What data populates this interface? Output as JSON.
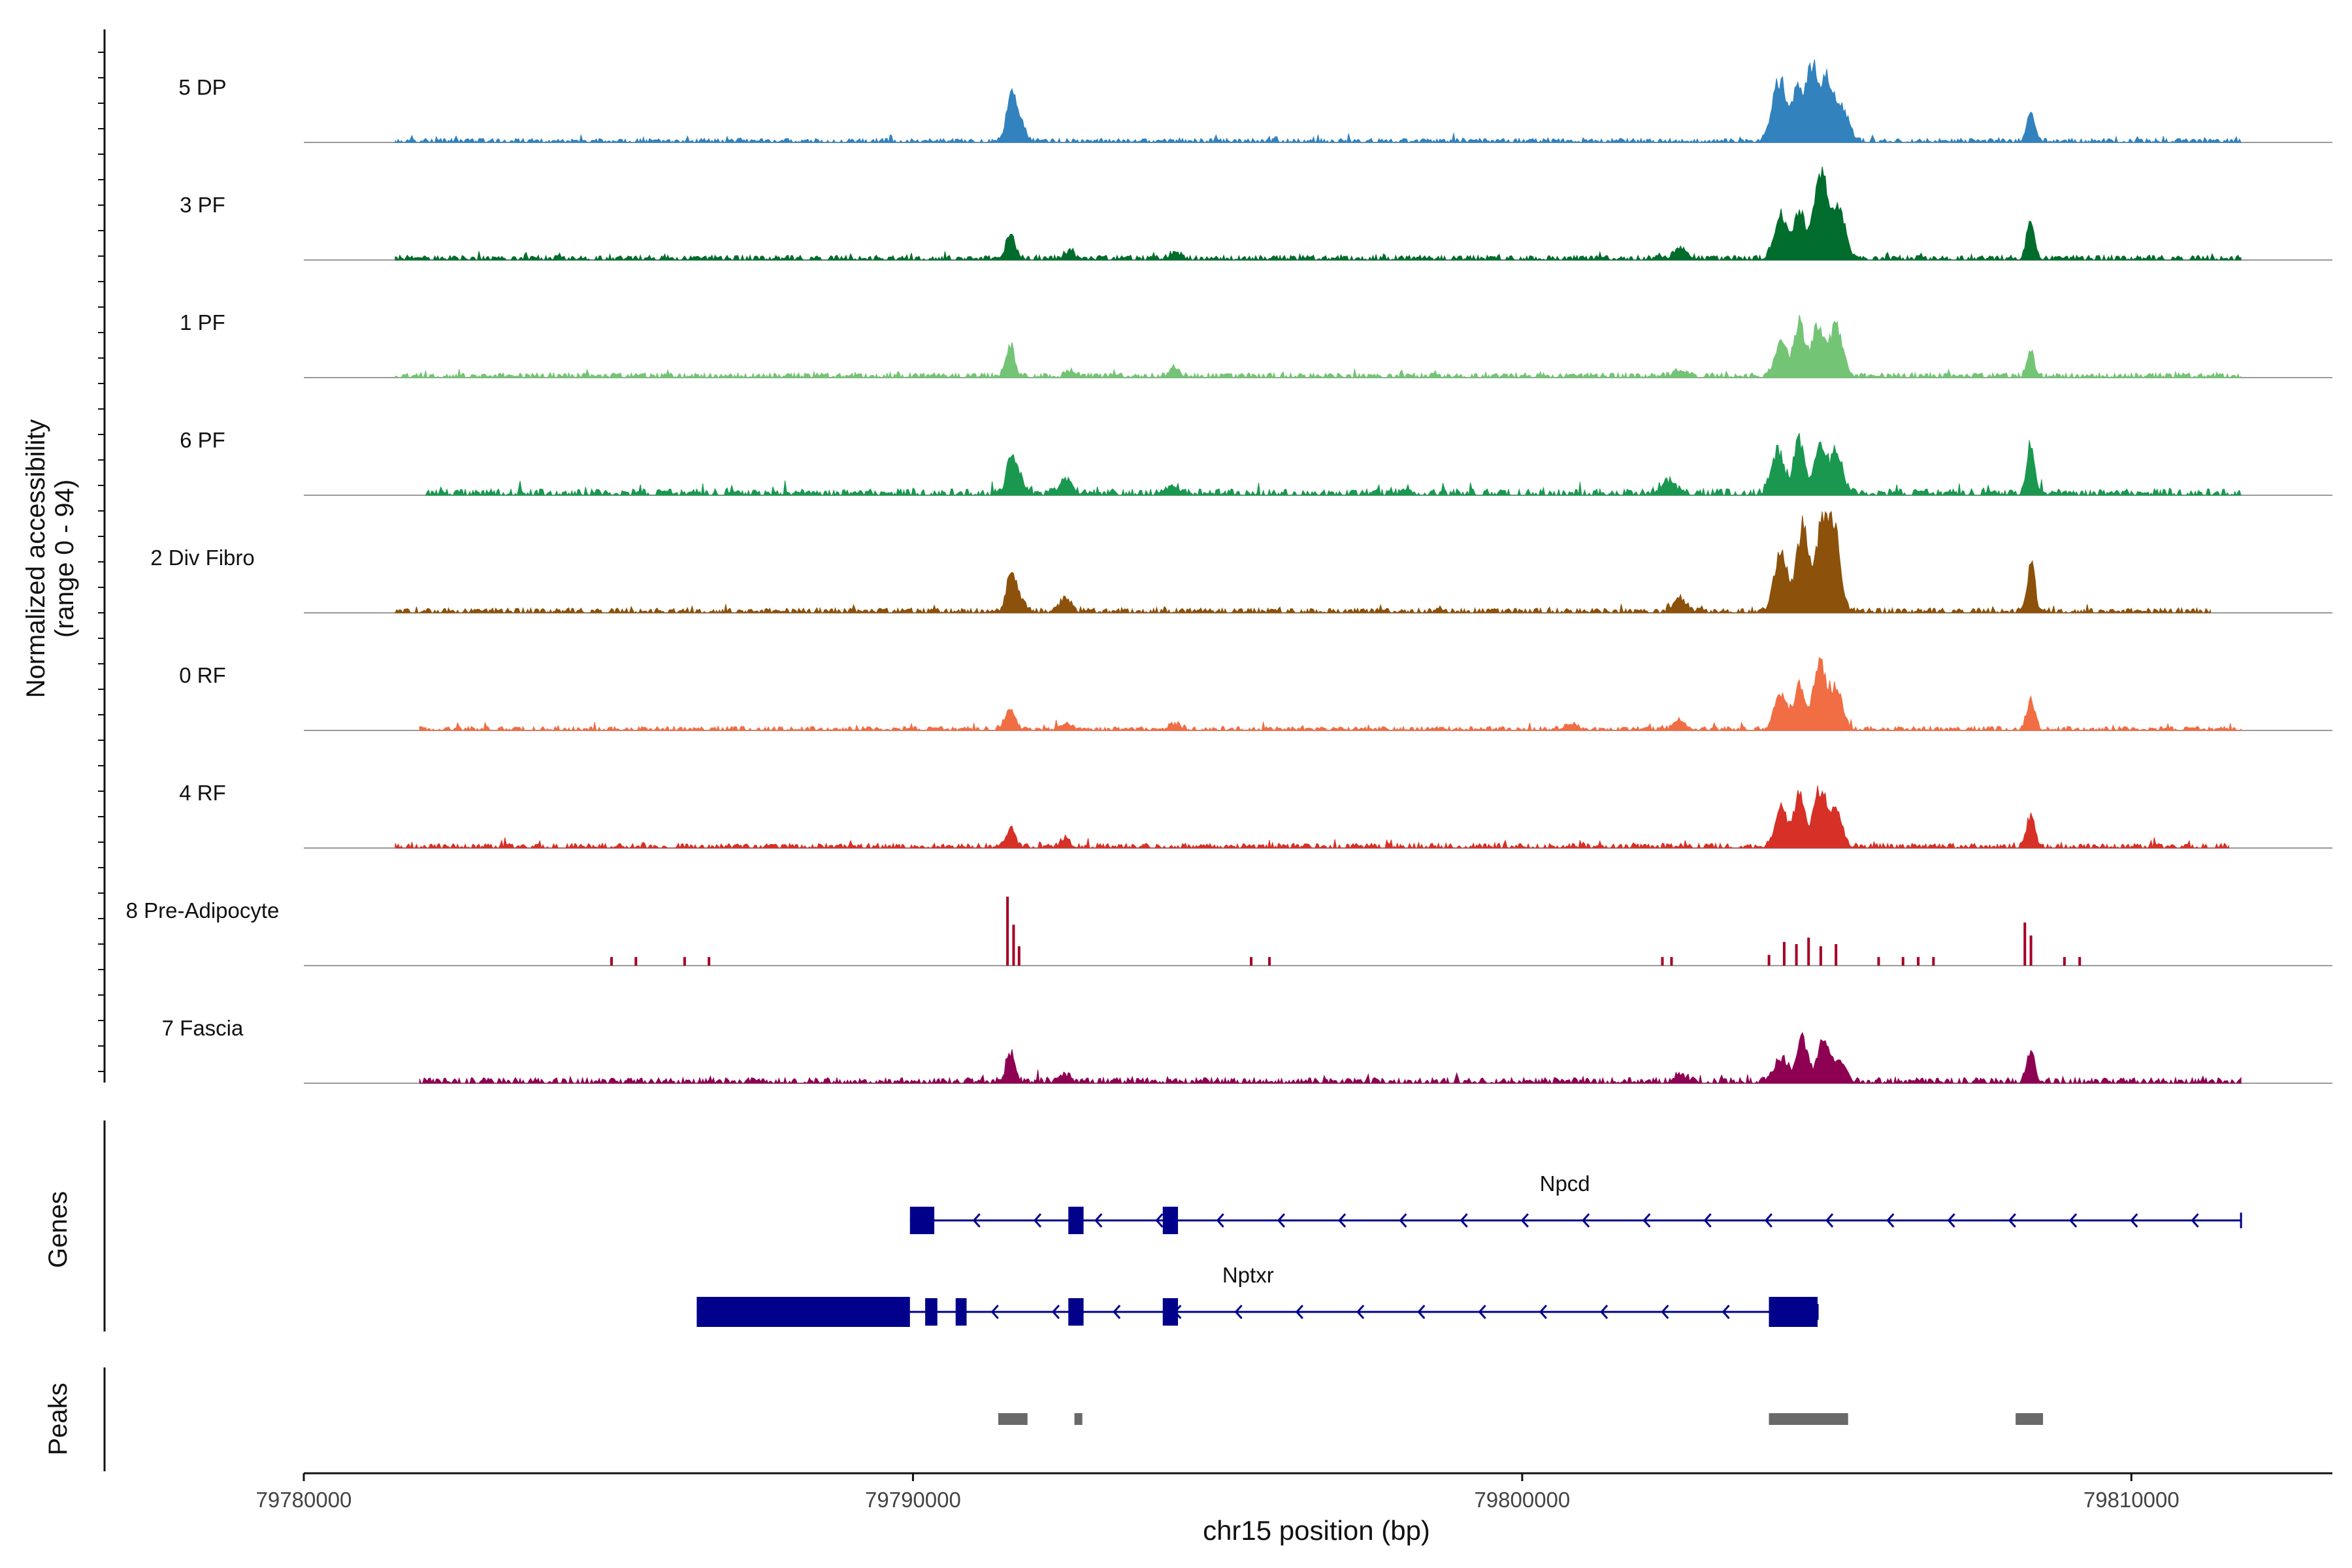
{
  "chart_data": {
    "type": "area",
    "y_axis_label_line1": "Normalized accessibility",
    "y_axis_label_line2": "(range 0 - 94)",
    "y_range": [
      0,
      94
    ],
    "genes_label": "Genes",
    "peaks_label": "Peaks",
    "x_axis_label": "chr15 position (bp)",
    "x_range": [
      79780000,
      79813300
    ],
    "x_ticks": [
      {
        "value": 79780000,
        "label": "79780000"
      },
      {
        "value": 79790000,
        "label": "79790000"
      },
      {
        "value": 79800000,
        "label": "79800000"
      },
      {
        "value": 79810000,
        "label": "79810000"
      }
    ],
    "tracks": [
      {
        "name": "5 DP",
        "color": "#3182bd",
        "start": 79781500,
        "end": 79811800,
        "baseline": 2.5,
        "peaks": [
          [
            79791600,
            36,
            100
          ],
          [
            79791720,
            22,
            140
          ],
          [
            79804220,
            56,
            160
          ],
          [
            79804520,
            45,
            110
          ],
          [
            79804750,
            68,
            140
          ],
          [
            79805000,
            55,
            140
          ],
          [
            79805250,
            30,
            160
          ],
          [
            79808350,
            30,
            90
          ]
        ]
      },
      {
        "name": "3 PF",
        "color": "#006d2c",
        "start": 79781500,
        "end": 79811800,
        "baseline": 3,
        "peaks": [
          [
            79791600,
            22,
            100
          ],
          [
            79792550,
            6,
            120
          ],
          [
            79794300,
            6,
            120
          ],
          [
            79802600,
            10,
            150
          ],
          [
            79804250,
            40,
            150
          ],
          [
            79804550,
            45,
            120
          ],
          [
            79804900,
            82,
            160
          ],
          [
            79805200,
            45,
            150
          ],
          [
            79808350,
            34,
            90
          ]
        ]
      },
      {
        "name": "1 PF",
        "color": "#74c476",
        "start": 79781500,
        "end": 79811800,
        "baseline": 3,
        "peaks": [
          [
            79791600,
            28,
            100
          ],
          [
            79792600,
            5,
            120
          ],
          [
            79794300,
            6,
            120
          ],
          [
            79802600,
            6,
            150
          ],
          [
            79804250,
            32,
            140
          ],
          [
            79804550,
            50,
            120
          ],
          [
            79804850,
            46,
            140
          ],
          [
            79805150,
            48,
            150
          ],
          [
            79808350,
            20,
            90
          ]
        ]
      },
      {
        "name": "6 PF",
        "color": "#1a9850",
        "start": 79782000,
        "end": 79811800,
        "baseline": 4,
        "peaks": [
          [
            79791600,
            28,
            100
          ],
          [
            79791720,
            15,
            140
          ],
          [
            79792500,
            12,
            160
          ],
          [
            79794300,
            6,
            160
          ],
          [
            79802400,
            12,
            170
          ],
          [
            79804200,
            40,
            150
          ],
          [
            79804550,
            50,
            120
          ],
          [
            79804880,
            44,
            130
          ],
          [
            79805150,
            38,
            150
          ],
          [
            79808350,
            45,
            90
          ]
        ]
      },
      {
        "name": "2 Div Fibro",
        "color": "#8c510a",
        "start": 79781500,
        "end": 79811300,
        "baseline": 3,
        "peaks": [
          [
            79791600,
            30,
            100
          ],
          [
            79791720,
            15,
            140
          ],
          [
            79792500,
            12,
            120
          ],
          [
            79802600,
            12,
            150
          ],
          [
            79804250,
            55,
            150
          ],
          [
            79804600,
            78,
            130
          ],
          [
            79804900,
            65,
            140
          ],
          [
            79805100,
            80,
            150
          ],
          [
            79808350,
            45,
            90
          ]
        ]
      },
      {
        "name": "0 RF",
        "color": "#f16d43",
        "start": 79781900,
        "end": 79811800,
        "baseline": 2.5,
        "peaks": [
          [
            79791600,
            18,
            110
          ],
          [
            79792500,
            5,
            120
          ],
          [
            79794300,
            5,
            120
          ],
          [
            79800800,
            6,
            140
          ],
          [
            79802600,
            6,
            150
          ],
          [
            79804250,
            35,
            140
          ],
          [
            79804550,
            42,
            120
          ],
          [
            79804880,
            60,
            140
          ],
          [
            79805150,
            38,
            150
          ],
          [
            79808350,
            30,
            90
          ]
        ]
      },
      {
        "name": "4 RF",
        "color": "#d73027",
        "start": 79781500,
        "end": 79811600,
        "baseline": 3,
        "peaks": [
          [
            79791600,
            18,
            100
          ],
          [
            79792500,
            6,
            120
          ],
          [
            79804250,
            35,
            140
          ],
          [
            79804550,
            48,
            120
          ],
          [
            79804880,
            52,
            140
          ],
          [
            79805150,
            35,
            140
          ],
          [
            79808350,
            30,
            90
          ]
        ]
      },
      {
        "name": "8 Pre-Adipocyte",
        "color": "#a50026",
        "start": 79785000,
        "end": 79809200,
        "baseline": 0,
        "sparse": true,
        "peaks": [
          [
            79785050,
            8,
            40
          ],
          [
            79785450,
            8,
            40
          ],
          [
            79786250,
            8,
            40
          ],
          [
            79786650,
            8,
            40
          ],
          [
            79791550,
            64,
            40
          ],
          [
            79791650,
            38,
            40
          ],
          [
            79791740,
            18,
            40
          ],
          [
            79795550,
            8,
            40
          ],
          [
            79795850,
            8,
            40
          ],
          [
            79802300,
            8,
            40
          ],
          [
            79802450,
            8,
            40
          ],
          [
            79804050,
            10,
            40
          ],
          [
            79804300,
            22,
            40
          ],
          [
            79804500,
            20,
            40
          ],
          [
            79804700,
            26,
            40
          ],
          [
            79804900,
            18,
            40
          ],
          [
            79805150,
            20,
            40
          ],
          [
            79805850,
            8,
            40
          ],
          [
            79806250,
            8,
            40
          ],
          [
            79806500,
            8,
            40
          ],
          [
            79806750,
            8,
            40
          ],
          [
            79808250,
            40,
            40
          ],
          [
            79808350,
            28,
            40
          ],
          [
            79808900,
            8,
            40
          ],
          [
            79809150,
            8,
            40
          ]
        ]
      },
      {
        "name": "7 Fascia",
        "color": "#8e0152",
        "start": 79781900,
        "end": 79811800,
        "baseline": 3.5,
        "peaks": [
          [
            79791600,
            28,
            100
          ],
          [
            79792500,
            6,
            120
          ],
          [
            79802600,
            6,
            150
          ],
          [
            79804250,
            22,
            150
          ],
          [
            79804600,
            42,
            120
          ],
          [
            79804950,
            35,
            140
          ],
          [
            79805200,
            18,
            150
          ],
          [
            79808350,
            28,
            90
          ]
        ]
      }
    ],
    "genes": [
      {
        "name": "Npcd",
        "color": "#00008b",
        "row": 1,
        "line_start": 79789950,
        "line_end": 79811800,
        "strand": "-",
        "label_pos": 79800700,
        "exons": [
          [
            79789950,
            79790200
          ],
          [
            79790150,
            79790350
          ],
          [
            79792550,
            79792800
          ],
          [
            79794100,
            79794350
          ]
        ],
        "arrows_from": 79791000,
        "arrow_step": 1000
      },
      {
        "name": "Nptxr",
        "color": "#00008b",
        "row": 2,
        "line_start": 79786450,
        "line_end": 79804850,
        "strand": "-",
        "label_pos": 79795500,
        "exons": [
          [
            79786450,
            79789950
          ],
          [
            79790200,
            79790400
          ],
          [
            79790700,
            79790880
          ],
          [
            79792550,
            79792800
          ],
          [
            79794100,
            79794350
          ],
          [
            79804050,
            79804850
          ]
        ],
        "arrows_from": 79791300,
        "arrow_step": 1000
      }
    ],
    "peak_regions": [
      [
        79791400,
        79791880
      ],
      [
        79792650,
        79792780
      ],
      [
        79804050,
        79805350
      ],
      [
        79808100,
        79808550
      ]
    ],
    "peak_color": "#696969"
  }
}
